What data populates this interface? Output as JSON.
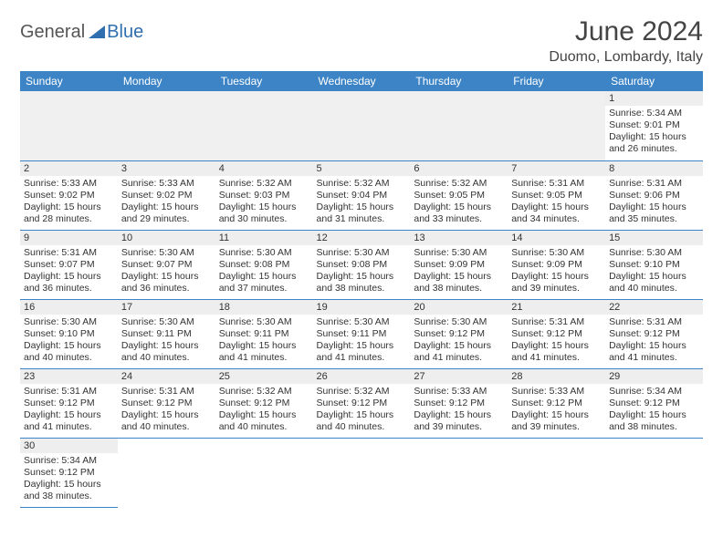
{
  "colors": {
    "header_bg": "#3d84c6",
    "daynum_bg": "#eeeeee",
    "border": "#3d84c6",
    "text": "#333333",
    "logo_blue": "#2f6fb0"
  },
  "logo": {
    "general": "General",
    "blue": "Blue"
  },
  "header": {
    "title": "June 2024",
    "location": "Duomo, Lombardy, Italy"
  },
  "weekdays": [
    "Sunday",
    "Monday",
    "Tuesday",
    "Wednesday",
    "Thursday",
    "Friday",
    "Saturday"
  ],
  "sunrise_label": "Sunrise: ",
  "sunset_label": "Sunset: ",
  "daylight_label": "Daylight: ",
  "days": {
    "d1": {
      "num": "1",
      "sunrise": "5:34 AM",
      "sunset": "9:01 PM",
      "daylight": "15 hours and 26 minutes."
    },
    "d2": {
      "num": "2",
      "sunrise": "5:33 AM",
      "sunset": "9:02 PM",
      "daylight": "15 hours and 28 minutes."
    },
    "d3": {
      "num": "3",
      "sunrise": "5:33 AM",
      "sunset": "9:02 PM",
      "daylight": "15 hours and 29 minutes."
    },
    "d4": {
      "num": "4",
      "sunrise": "5:32 AM",
      "sunset": "9:03 PM",
      "daylight": "15 hours and 30 minutes."
    },
    "d5": {
      "num": "5",
      "sunrise": "5:32 AM",
      "sunset": "9:04 PM",
      "daylight": "15 hours and 31 minutes."
    },
    "d6": {
      "num": "6",
      "sunrise": "5:32 AM",
      "sunset": "9:05 PM",
      "daylight": "15 hours and 33 minutes."
    },
    "d7": {
      "num": "7",
      "sunrise": "5:31 AM",
      "sunset": "9:05 PM",
      "daylight": "15 hours and 34 minutes."
    },
    "d8": {
      "num": "8",
      "sunrise": "5:31 AM",
      "sunset": "9:06 PM",
      "daylight": "15 hours and 35 minutes."
    },
    "d9": {
      "num": "9",
      "sunrise": "5:31 AM",
      "sunset": "9:07 PM",
      "daylight": "15 hours and 36 minutes."
    },
    "d10": {
      "num": "10",
      "sunrise": "5:30 AM",
      "sunset": "9:07 PM",
      "daylight": "15 hours and 36 minutes."
    },
    "d11": {
      "num": "11",
      "sunrise": "5:30 AM",
      "sunset": "9:08 PM",
      "daylight": "15 hours and 37 minutes."
    },
    "d12": {
      "num": "12",
      "sunrise": "5:30 AM",
      "sunset": "9:08 PM",
      "daylight": "15 hours and 38 minutes."
    },
    "d13": {
      "num": "13",
      "sunrise": "5:30 AM",
      "sunset": "9:09 PM",
      "daylight": "15 hours and 38 minutes."
    },
    "d14": {
      "num": "14",
      "sunrise": "5:30 AM",
      "sunset": "9:09 PM",
      "daylight": "15 hours and 39 minutes."
    },
    "d15": {
      "num": "15",
      "sunrise": "5:30 AM",
      "sunset": "9:10 PM",
      "daylight": "15 hours and 40 minutes."
    },
    "d16": {
      "num": "16",
      "sunrise": "5:30 AM",
      "sunset": "9:10 PM",
      "daylight": "15 hours and 40 minutes."
    },
    "d17": {
      "num": "17",
      "sunrise": "5:30 AM",
      "sunset": "9:11 PM",
      "daylight": "15 hours and 40 minutes."
    },
    "d18": {
      "num": "18",
      "sunrise": "5:30 AM",
      "sunset": "9:11 PM",
      "daylight": "15 hours and 41 minutes."
    },
    "d19": {
      "num": "19",
      "sunrise": "5:30 AM",
      "sunset": "9:11 PM",
      "daylight": "15 hours and 41 minutes."
    },
    "d20": {
      "num": "20",
      "sunrise": "5:30 AM",
      "sunset": "9:12 PM",
      "daylight": "15 hours and 41 minutes."
    },
    "d21": {
      "num": "21",
      "sunrise": "5:31 AM",
      "sunset": "9:12 PM",
      "daylight": "15 hours and 41 minutes."
    },
    "d22": {
      "num": "22",
      "sunrise": "5:31 AM",
      "sunset": "9:12 PM",
      "daylight": "15 hours and 41 minutes."
    },
    "d23": {
      "num": "23",
      "sunrise": "5:31 AM",
      "sunset": "9:12 PM",
      "daylight": "15 hours and 41 minutes."
    },
    "d24": {
      "num": "24",
      "sunrise": "5:31 AM",
      "sunset": "9:12 PM",
      "daylight": "15 hours and 40 minutes."
    },
    "d25": {
      "num": "25",
      "sunrise": "5:32 AM",
      "sunset": "9:12 PM",
      "daylight": "15 hours and 40 minutes."
    },
    "d26": {
      "num": "26",
      "sunrise": "5:32 AM",
      "sunset": "9:12 PM",
      "daylight": "15 hours and 40 minutes."
    },
    "d27": {
      "num": "27",
      "sunrise": "5:33 AM",
      "sunset": "9:12 PM",
      "daylight": "15 hours and 39 minutes."
    },
    "d28": {
      "num": "28",
      "sunrise": "5:33 AM",
      "sunset": "9:12 PM",
      "daylight": "15 hours and 39 minutes."
    },
    "d29": {
      "num": "29",
      "sunrise": "5:34 AM",
      "sunset": "9:12 PM",
      "daylight": "15 hours and 38 minutes."
    },
    "d30": {
      "num": "30",
      "sunrise": "5:34 AM",
      "sunset": "9:12 PM",
      "daylight": "15 hours and 38 minutes."
    }
  }
}
